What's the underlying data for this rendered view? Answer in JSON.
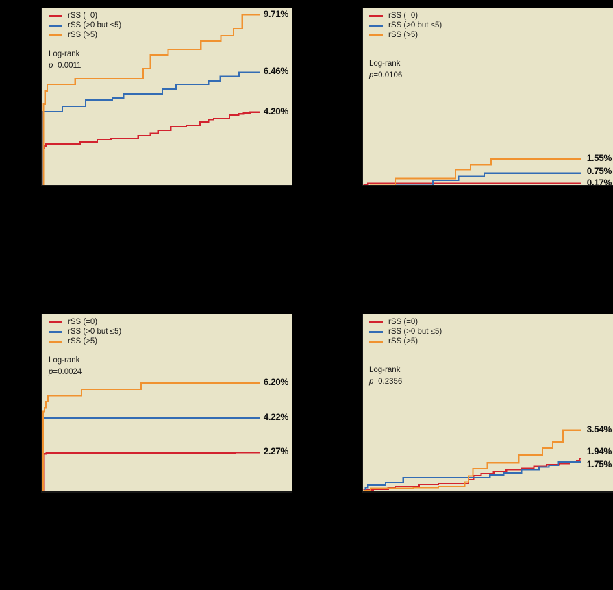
{
  "colors": {
    "red": "#d2232f",
    "blue": "#336cb4",
    "orange": "#f09230",
    "panel_bg": "#e8e4c8",
    "page_bg": "#000000",
    "text": "#1c1c1c"
  },
  "legend": {
    "items": [
      {
        "label": "rSS (=0)",
        "color": "red"
      },
      {
        "label": "rSS (>0 but ≤5)",
        "color": "blue"
      },
      {
        "label": "rSS (>5)",
        "color": "orange"
      }
    ]
  },
  "chart_data": [
    {
      "id": "top-left",
      "type": "line",
      "subtype": "kaplan-meier-step",
      "logrank_label": "Log-rank",
      "p_value": "p=0.0011",
      "ylim": [
        0,
        10.12
      ],
      "legend_position": "top-left",
      "grid": false,
      "series": [
        {
          "name": "rSS (=0)",
          "color": "red",
          "end_label": "4.20%",
          "end_value": 4.2,
          "label_dy": 0,
          "points": [
            [
              0,
              0
            ],
            [
              0.003,
              2.13
            ],
            [
              0.008,
              2.3
            ],
            [
              0.013,
              2.4
            ],
            [
              0.15,
              2.52
            ],
            [
              0.218,
              2.64
            ],
            [
              0.272,
              2.71
            ],
            [
              0.381,
              2.87
            ],
            [
              0.43,
              3.0
            ],
            [
              0.46,
              3.18
            ],
            [
              0.51,
              3.37
            ],
            [
              0.572,
              3.45
            ],
            [
              0.627,
              3.65
            ],
            [
              0.66,
              3.78
            ],
            [
              0.681,
              3.84
            ],
            [
              0.744,
              4.03
            ],
            [
              0.78,
              4.1
            ],
            [
              0.8,
              4.15
            ],
            [
              0.826,
              4.2
            ],
            [
              0.866,
              4.2
            ]
          ]
        },
        {
          "name": "rSS (>0 but ≤5)",
          "color": "blue",
          "end_label": "6.46%",
          "end_value": 6.46,
          "label_dy": 0,
          "points": [
            [
              0,
              0
            ],
            [
              0.003,
              4.23
            ],
            [
              0.079,
              4.54
            ],
            [
              0.172,
              4.89
            ],
            [
              0.278,
              5.0
            ],
            [
              0.322,
              5.24
            ],
            [
              0.477,
              5.51
            ],
            [
              0.531,
              5.78
            ],
            [
              0.66,
              5.97
            ],
            [
              0.708,
              6.21
            ],
            [
              0.782,
              6.46
            ],
            [
              0.866,
              6.46
            ]
          ]
        },
        {
          "name": "rSS (>5)",
          "color": "orange",
          "end_label": "9.71%",
          "end_value": 9.71,
          "label_dy": 0,
          "points": [
            [
              0,
              0
            ],
            [
              0.004,
              4.66
            ],
            [
              0.01,
              5.39
            ],
            [
              0.019,
              5.78
            ],
            [
              0.13,
              6.09
            ],
            [
              0.4,
              6.67
            ],
            [
              0.43,
              7.45
            ],
            [
              0.5,
              7.76
            ],
            [
              0.63,
              8.22
            ],
            [
              0.71,
              8.53
            ],
            [
              0.76,
              8.92
            ],
            [
              0.795,
              9.71
            ],
            [
              0.866,
              9.71
            ]
          ]
        }
      ]
    },
    {
      "id": "top-right",
      "type": "line",
      "subtype": "kaplan-meier-step",
      "logrank_label": "Log-rank",
      "p_value": "p=0.0106",
      "ylim": [
        0,
        10.12
      ],
      "legend_position": "top-left",
      "grid": false,
      "series": [
        {
          "name": "rSS (=0)",
          "color": "red",
          "end_label": "0.17%",
          "end_value": 0.17,
          "label_dy": 0,
          "points": [
            [
              0,
              0
            ],
            [
              0.004,
              0.1
            ],
            [
              0.02,
              0.17
            ],
            [
              0.866,
              0.17
            ]
          ]
        },
        {
          "name": "rSS (>0 but ≤5)",
          "color": "blue",
          "end_label": "0.75%",
          "end_value": 0.75,
          "label_dy": -2,
          "points": [
            [
              0,
              0
            ],
            [
              0.05,
              0.05
            ],
            [
              0.278,
              0.35
            ],
            [
              0.38,
              0.55
            ],
            [
              0.482,
              0.75
            ],
            [
              0.866,
              0.75
            ]
          ]
        },
        {
          "name": "rSS (>5)",
          "color": "orange",
          "end_label": "1.55%",
          "end_value": 1.55,
          "label_dy": 0,
          "points": [
            [
              0,
              0
            ],
            [
              0.03,
              0.06
            ],
            [
              0.128,
              0.45
            ],
            [
              0.368,
              0.95
            ],
            [
              0.428,
              1.22
            ],
            [
              0.51,
              1.55
            ],
            [
              0.866,
              1.55
            ]
          ]
        }
      ]
    },
    {
      "id": "bottom-left",
      "type": "line",
      "subtype": "kaplan-meier-step",
      "logrank_label": "Log-rank",
      "p_value": "p=0.0024",
      "ylim": [
        0,
        10.12
      ],
      "legend_position": "top-left",
      "grid": false,
      "series": [
        {
          "name": "rSS (=0)",
          "color": "red",
          "end_label": "2.27%",
          "end_value": 2.27,
          "label_dy": 0,
          "points": [
            [
              0,
              0
            ],
            [
              0.004,
              2.2
            ],
            [
              0.015,
              2.25
            ],
            [
              0.766,
              2.27
            ],
            [
              0.866,
              2.27
            ]
          ]
        },
        {
          "name": "rSS (>0 but ≤5)",
          "color": "blue",
          "end_label": "4.22%",
          "end_value": 4.22,
          "label_dy": 0,
          "points": [
            [
              0,
              0
            ],
            [
              0.003,
              4.22
            ],
            [
              0.866,
              4.22
            ]
          ]
        },
        {
          "name": "rSS (>5)",
          "color": "orange",
          "end_label": "6.20%",
          "end_value": 6.2,
          "label_dy": 0,
          "points": [
            [
              0,
              0
            ],
            [
              0.003,
              4.6
            ],
            [
              0.008,
              4.8
            ],
            [
              0.014,
              5.16
            ],
            [
              0.022,
              5.5
            ],
            [
              0.155,
              5.86
            ],
            [
              0.392,
              6.2
            ],
            [
              0.866,
              6.2
            ]
          ]
        }
      ]
    },
    {
      "id": "bottom-right",
      "type": "line",
      "subtype": "kaplan-meier-step",
      "logrank_label": "Log-rank",
      "p_value": "p=0.2356",
      "ylim": [
        0,
        10.12
      ],
      "legend_position": "top-left",
      "grid": false,
      "series": [
        {
          "name": "rSS (=0)",
          "color": "red",
          "end_label": "1.94%",
          "end_value": 1.94,
          "label_dy": -9,
          "points": [
            [
              0,
              0
            ],
            [
              0.005,
              0.15
            ],
            [
              0.04,
              0.2
            ],
            [
              0.1,
              0.28
            ],
            [
              0.128,
              0.35
            ],
            [
              0.223,
              0.46
            ],
            [
              0.3,
              0.5
            ],
            [
              0.42,
              0.74
            ],
            [
              0.44,
              0.97
            ],
            [
              0.47,
              1.09
            ],
            [
              0.52,
              1.2
            ],
            [
              0.57,
              1.3
            ],
            [
              0.63,
              1.38
            ],
            [
              0.68,
              1.48
            ],
            [
              0.73,
              1.58
            ],
            [
              0.78,
              1.65
            ],
            [
              0.82,
              1.72
            ],
            [
              0.85,
              1.8
            ],
            [
              0.862,
              1.94
            ],
            [
              0.866,
              1.94
            ]
          ]
        },
        {
          "name": "rSS (>0 but ≤5)",
          "color": "blue",
          "end_label": "1.75%",
          "end_value": 1.75,
          "label_dy": 5,
          "points": [
            [
              0,
              0
            ],
            [
              0.01,
              0.3
            ],
            [
              0.02,
              0.43
            ],
            [
              0.09,
              0.58
            ],
            [
              0.16,
              0.85
            ],
            [
              0.505,
              1.0
            ],
            [
              0.56,
              1.12
            ],
            [
              0.63,
              1.3
            ],
            [
              0.7,
              1.45
            ],
            [
              0.74,
              1.55
            ],
            [
              0.776,
              1.75
            ],
            [
              0.866,
              1.75
            ]
          ]
        },
        {
          "name": "rSS (>5)",
          "color": "orange",
          "end_label": "3.54%",
          "end_value": 3.54,
          "label_dy": 0,
          "points": [
            [
              0,
              0
            ],
            [
              0.005,
              0.12
            ],
            [
              0.03,
              0.25
            ],
            [
              0.2,
              0.3
            ],
            [
              0.3,
              0.35
            ],
            [
              0.405,
              0.6
            ],
            [
              0.42,
              0.95
            ],
            [
              0.437,
              1.36
            ],
            [
              0.495,
              1.7
            ],
            [
              0.62,
              2.13
            ],
            [
              0.714,
              2.52
            ],
            [
              0.755,
              2.87
            ],
            [
              0.796,
              3.54
            ],
            [
              0.866,
              3.54
            ]
          ]
        }
      ]
    }
  ]
}
